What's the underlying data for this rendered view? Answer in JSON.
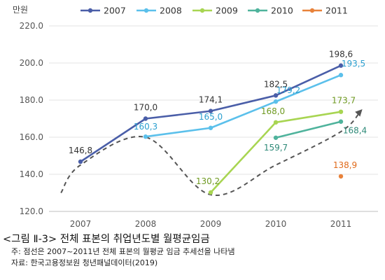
{
  "chart_data": {
    "type": "line",
    "ylabel": "만원",
    "ylim": [
      120,
      220
    ],
    "yticks": [
      "120.0",
      "140.0",
      "160.0",
      "180.0",
      "200.0",
      "220.0"
    ],
    "categories": [
      "2007",
      "2008",
      "2009",
      "2010",
      "2011"
    ],
    "grid": "horizontal",
    "legend": "top",
    "series": [
      {
        "name": "2007",
        "color": "#4a5ea8",
        "points": [
          [
            0,
            146.8
          ],
          [
            1,
            170.0
          ],
          [
            2,
            174.1
          ],
          [
            3,
            182.5
          ],
          [
            4,
            198.6
          ]
        ],
        "labels": [
          "146,8",
          "170,0",
          "174,1",
          "182,5",
          "198,6"
        ],
        "label_color": "#333333"
      },
      {
        "name": "2008",
        "color": "#5bc0eb",
        "points": [
          [
            1,
            160.3
          ],
          [
            2,
            165.0
          ],
          [
            3,
            179.2
          ],
          [
            4,
            193.5
          ]
        ],
        "labels": [
          "160,3",
          "165,0",
          "179,2",
          "193,5"
        ],
        "label_color": "#2b9fcf"
      },
      {
        "name": "2009",
        "color": "#a8d552",
        "points": [
          [
            2,
            130.2
          ],
          [
            3,
            168.0
          ],
          [
            4,
            173.7
          ]
        ],
        "labels": [
          "130,2",
          "168,0",
          "173,7"
        ],
        "label_color": "#6f9a22"
      },
      {
        "name": "2010",
        "color": "#4fb39c",
        "points": [
          [
            3,
            159.7
          ],
          [
            4,
            168.4
          ]
        ],
        "labels": [
          "159,7",
          "168,4"
        ],
        "label_color": "#2e8a78"
      },
      {
        "name": "2011",
        "color": "#e8823a",
        "points": [
          [
            4,
            138.9
          ]
        ],
        "labels": [
          "138,9"
        ],
        "label_color": "#e06a1a"
      }
    ],
    "trend_line": {
      "color": "#555555",
      "style": "dashed",
      "points": [
        [
          -0.3,
          130
        ],
        [
          0,
          145
        ],
        [
          1,
          160
        ],
        [
          2,
          129
        ],
        [
          3,
          145
        ],
        [
          4,
          163
        ],
        [
          4.3,
          174
        ]
      ]
    }
  },
  "caption": {
    "title": "<그림 Ⅱ-3> 전체 표본의 취업년도별 월평균임금",
    "note": "주: 점선은 2007~2011년 전체 표본의 월평균 임금 추세선을 나타냄",
    "source": "자료: 한국고용정보원 청년패널데이터(2019)"
  }
}
